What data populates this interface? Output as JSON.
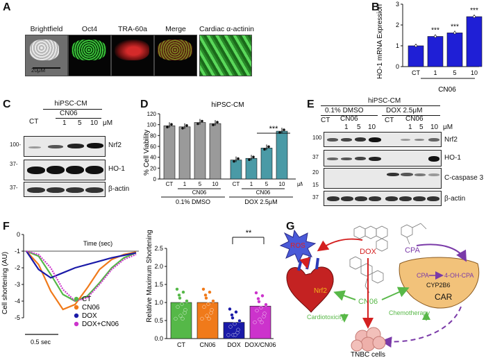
{
  "panels": {
    "A": "A",
    "B": "B",
    "C": "C",
    "D": "D",
    "E": "E",
    "F": "F",
    "G": "G"
  },
  "panel_a": {
    "titles": [
      "Brightfield",
      "Oct4",
      "TRA-60a",
      "Merge",
      "Cardiac α-actinin"
    ],
    "scale_bar": "20μM"
  },
  "panel_b": {
    "ylabel": "HO-1 mRNA Expression",
    "yticks": [
      "0",
      "1",
      "2",
      "3"
    ],
    "categories": [
      "CT",
      "1",
      "5",
      "10"
    ],
    "group_label": "CN06",
    "sig": [
      "",
      "***",
      "***",
      "***"
    ]
  },
  "panel_c": {
    "header": "hiPSC-CM",
    "group": "CN06",
    "cols": [
      "CT",
      "1",
      "5",
      "10"
    ],
    "unit": "μM",
    "rows": [
      "Nrf2",
      "HO-1",
      "β-actin"
    ],
    "mw": [
      "100-",
      "37-",
      "37-"
    ]
  },
  "panel_d": {
    "title": "hiPSC-CM",
    "ylabel": "% Cell Viability",
    "yticks": [
      "0",
      "20",
      "40",
      "60",
      "80",
      "100",
      "120"
    ],
    "xticks": [
      "CT",
      "1",
      "5",
      "10",
      "CT",
      "1",
      "5",
      "10"
    ],
    "unit": "μM",
    "sub_labels": [
      "CN06",
      "CN06"
    ],
    "group_labels": [
      "0.1% DMSO",
      "DOX 2.5μM"
    ],
    "sig": "***"
  },
  "panel_e": {
    "header": "hiPSC-CM",
    "groups": [
      "0.1% DMSO",
      "DOX 2.5μM"
    ],
    "sub": [
      "CN06",
      "CN06"
    ],
    "cols": [
      "CT",
      "1",
      "5",
      "10",
      "CT",
      "1",
      "5",
      "10"
    ],
    "unit": "μM",
    "rows": [
      "Nrf2",
      "HO-1",
      "C-caspase 3",
      "β-actin"
    ],
    "mw": [
      "100",
      "37",
      "20",
      "15",
      "37"
    ]
  },
  "panel_f": {
    "ylabel": "Cell shortening (AU)",
    "yticks": [
      "0",
      "-1",
      "-2",
      "-3",
      "-4",
      "-5"
    ],
    "time_label": "Time (sec)",
    "scale_label": "0.5 sec",
    "legend": [
      "CT",
      "CN06",
      "DOX",
      "DOX+CN06"
    ],
    "bar_ylabel": "Relative Maximum Shortening",
    "bar_yticks": [
      "0.0",
      "0.5",
      "1.0",
      "1.5",
      "2.0",
      "2.5"
    ],
    "bar_categories": [
      "CT",
      "CN06",
      "DOX",
      "DOX/CN06"
    ],
    "sig": "**"
  },
  "panel_g": {
    "ros": "ROS",
    "dox": "DOX",
    "cpa": "CPA",
    "cn06": "CN06",
    "nrf2": "Nrf2",
    "car": "CAR",
    "cyp": "CYP2B6",
    "cpa2": "CPA",
    "ohcpa": "4-OH-CPA",
    "cardiotox": "Cardiotoxicity",
    "chemo": "Chemotherapy",
    "tnbc": "TNBC cells"
  },
  "colors": {
    "bar_blue": "#1f1fd6",
    "gray_bar": "#9a9a9a",
    "teal_bar": "#4a9aa6",
    "ct": "#55b848",
    "cn06": "#f07a1a",
    "dox": "#1a1aa8",
    "doxcn06": "#cc33cc",
    "red_arrow": "#d42020",
    "green_arrow": "#58b848",
    "purple_arrow": "#7a3aa8"
  },
  "chart_data": [
    {
      "type": "bar",
      "title": "",
      "categories": [
        "CT",
        "1",
        "5",
        "10"
      ],
      "values": [
        1.0,
        1.45,
        1.62,
        2.4
      ],
      "ylabel": "HO-1 mRNA Expression",
      "xlabel": "CN06",
      "ylim": [
        0,
        3
      ]
    },
    {
      "type": "bar",
      "title": "hiPSC-CM",
      "categories": [
        "CT",
        "1",
        "5",
        "10",
        "CT",
        "1",
        "5",
        "10"
      ],
      "values": [
        98,
        96,
        104,
        102,
        35,
        38,
        57,
        88
      ],
      "ylabel": "% Cell Viability",
      "ylim": [
        0,
        120
      ]
    },
    {
      "type": "line",
      "ylabel": "Cell shortening (AU)",
      "ylim": [
        -5,
        0
      ],
      "series": [
        {
          "name": "CT",
          "values": [
            -1,
            -1.3,
            -2.4,
            -3.6,
            -4.0,
            -3.7,
            -2.9,
            -2.0,
            -1.4,
            -1.1
          ]
        },
        {
          "name": "CN06",
          "values": [
            -1,
            -1.8,
            -3.4,
            -4.5,
            -4.2,
            -3.2,
            -2.1,
            -1.5,
            -1.2,
            -1.05
          ]
        },
        {
          "name": "DOX",
          "values": [
            -1,
            -2.1,
            -2.6,
            -2.3,
            -2.0,
            -1.8,
            -1.6,
            -1.4,
            -1.25,
            -1.1
          ]
        },
        {
          "name": "DOX+CN06",
          "values": [
            -1,
            -1.2,
            -2.0,
            -3.3,
            -4.0,
            -3.8,
            -3.0,
            -2.1,
            -1.5,
            -1.2
          ]
        }
      ]
    },
    {
      "type": "bar",
      "categories": [
        "CT",
        "CN06",
        "DOX",
        "DOX/CN06"
      ],
      "values": [
        1.0,
        1.0,
        0.45,
        0.9
      ],
      "ylabel": "Relative Maximum Shortening",
      "ylim": [
        0,
        2.5
      ]
    }
  ]
}
